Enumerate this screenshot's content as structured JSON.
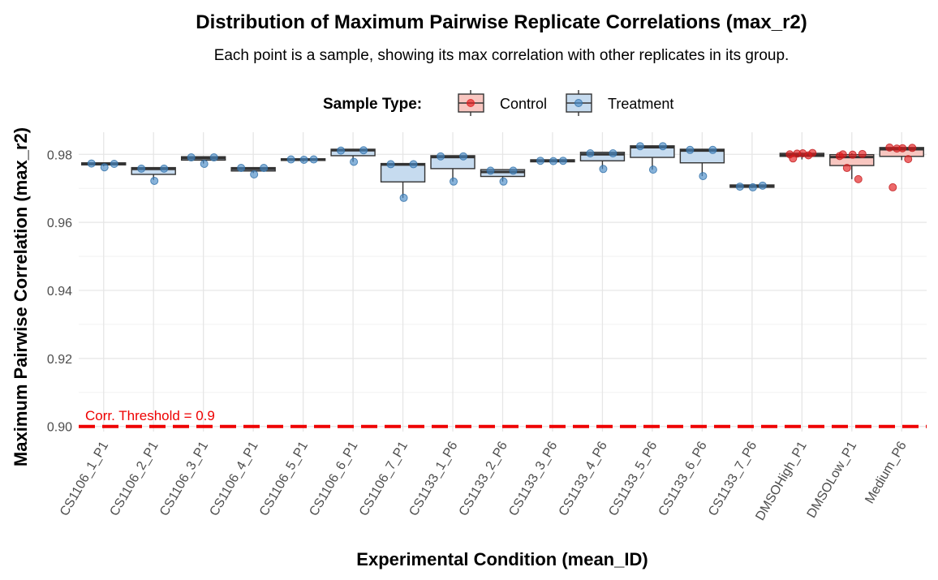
{
  "chart_data": {
    "type": "box",
    "title": "Distribution of Maximum Pairwise Replicate Correlations (max_r2)",
    "subtitle": "Each point is a sample, showing its max correlation with other replicates in its group.",
    "xlabel": "Experimental Condition (mean_ID)",
    "ylabel": "Maximum Pairwise Correlation (max_r2)",
    "ylim": [
      0.8985,
      0.9865
    ],
    "yticks": [
      0.9,
      0.92,
      0.94,
      0.96,
      0.98
    ],
    "ytick_labels": [
      "0.90",
      "0.92",
      "0.94",
      "0.96",
      "0.98"
    ],
    "grid": true,
    "legend": {
      "title": "Sample Type:",
      "position": "top",
      "entries": [
        {
          "name": "Control",
          "fill": "#f8c6c0",
          "point": "#e41a1c"
        },
        {
          "name": "Treatment",
          "fill": "#c6dbef",
          "point": "#4a8cc7"
        }
      ]
    },
    "threshold": {
      "value": 0.9,
      "label": "Corr. Threshold = 0.9",
      "color": "#ee0000"
    },
    "categories": [
      {
        "name": "CS1106_1_P1",
        "type": "Treatment",
        "q1": 0.9769,
        "median": 0.9772,
        "q3": 0.9775,
        "lo": 0.9765,
        "hi": 0.9775,
        "points": [
          0.9773,
          0.9762,
          0.9772
        ]
      },
      {
        "name": "CS1106_2_P1",
        "type": "Treatment",
        "q1": 0.9741,
        "median": 0.9757,
        "q3": 0.9761,
        "lo": 0.9725,
        "hi": 0.9761,
        "points": [
          0.9758,
          0.9722,
          0.9758
        ]
      },
      {
        "name": "CS1106_3_P1",
        "type": "Treatment",
        "q1": 0.9783,
        "median": 0.9789,
        "q3": 0.9793,
        "lo": 0.9773,
        "hi": 0.9793,
        "points": [
          0.9791,
          0.9772,
          0.9791
        ]
      },
      {
        "name": "CS1106_4_P1",
        "type": "Treatment",
        "q1": 0.9751,
        "median": 0.9757,
        "q3": 0.9761,
        "lo": 0.9745,
        "hi": 0.9761,
        "points": [
          0.976,
          0.9741,
          0.976
        ]
      },
      {
        "name": "CS1106_5_P1",
        "type": "Treatment",
        "q1": 0.9782,
        "median": 0.9785,
        "q3": 0.9787,
        "lo": 0.9778,
        "hi": 0.9787,
        "points": [
          0.9785,
          0.9784,
          0.9785
        ]
      },
      {
        "name": "CS1106_6_P1",
        "type": "Treatment",
        "q1": 0.9796,
        "median": 0.9812,
        "q3": 0.9815,
        "lo": 0.9778,
        "hi": 0.9815,
        "points": [
          0.9811,
          0.9778,
          0.9812
        ]
      },
      {
        "name": "CS1106_7_P1",
        "type": "Treatment",
        "q1": 0.9719,
        "median": 0.977,
        "q3": 0.9773,
        "lo": 0.9672,
        "hi": 0.9773,
        "points": [
          0.9771,
          0.9672,
          0.9771
        ]
      },
      {
        "name": "CS1133_1_P6",
        "type": "Treatment",
        "q1": 0.9758,
        "median": 0.9792,
        "q3": 0.9796,
        "lo": 0.972,
        "hi": 0.9796,
        "points": [
          0.9794,
          0.972,
          0.9794
        ]
      },
      {
        "name": "CS1133_2_P6",
        "type": "Treatment",
        "q1": 0.9735,
        "median": 0.9748,
        "q3": 0.9755,
        "lo": 0.972,
        "hi": 0.9755,
        "points": [
          0.9752,
          0.972,
          0.9752
        ]
      },
      {
        "name": "CS1133_3_P6",
        "type": "Treatment",
        "q1": 0.9778,
        "median": 0.9781,
        "q3": 0.9784,
        "lo": 0.9778,
        "hi": 0.9784,
        "points": [
          0.9781,
          0.978,
          0.9781
        ]
      },
      {
        "name": "CS1133_4_P6",
        "type": "Treatment",
        "q1": 0.9781,
        "median": 0.98,
        "q3": 0.9806,
        "lo": 0.9757,
        "hi": 0.9806,
        "points": [
          0.9803,
          0.9757,
          0.9803
        ]
      },
      {
        "name": "CS1133_5_P6",
        "type": "Treatment",
        "q1": 0.9791,
        "median": 0.9821,
        "q3": 0.9825,
        "lo": 0.9755,
        "hi": 0.9825,
        "points": [
          0.9824,
          0.9755,
          0.9824
        ]
      },
      {
        "name": "CS1133_6_P6",
        "type": "Treatment",
        "q1": 0.9775,
        "median": 0.9811,
        "q3": 0.9815,
        "lo": 0.9736,
        "hi": 0.9815,
        "points": [
          0.9813,
          0.9736,
          0.9813
        ]
      },
      {
        "name": "CS1133_7_P6",
        "type": "Treatment",
        "q1": 0.9703,
        "median": 0.9706,
        "q3": 0.971,
        "lo": 0.9701,
        "hi": 0.971,
        "points": [
          0.9705,
          0.9703,
          0.9708
        ]
      },
      {
        "name": "DMSOHigh_P1",
        "type": "Control",
        "q1": 0.9794,
        "median": 0.9798,
        "q3": 0.9803,
        "lo": 0.9785,
        "hi": 0.9805,
        "points": [
          0.98,
          0.9803,
          0.9804,
          0.9802,
          0.9797,
          0.9788
        ]
      },
      {
        "name": "DMSOLow_P1",
        "type": "Control",
        "q1": 0.9767,
        "median": 0.9792,
        "q3": 0.9799,
        "lo": 0.9727,
        "hi": 0.9803,
        "points": [
          0.9795,
          0.9799,
          0.9801,
          0.976,
          0.9727,
          0.98
        ]
      },
      {
        "name": "Medium_P6",
        "type": "Control",
        "q1": 0.9794,
        "median": 0.9815,
        "q3": 0.982,
        "lo": 0.9783,
        "hi": 0.9822,
        "points": [
          0.982,
          0.9818,
          0.9819,
          0.9817,
          0.9786,
          0.9703
        ]
      }
    ]
  }
}
